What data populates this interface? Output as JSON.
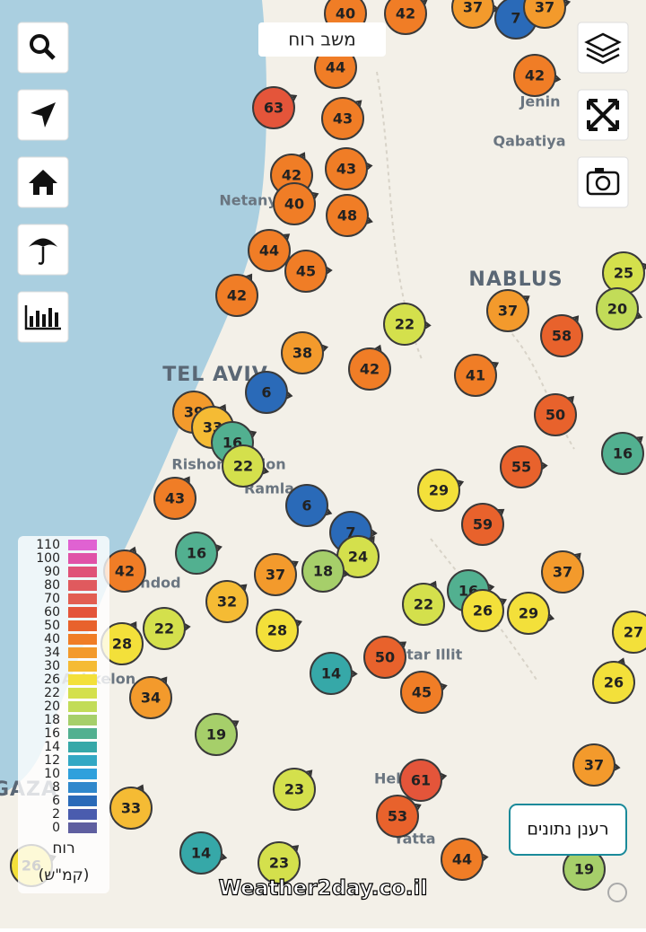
{
  "title": "משב רוח",
  "refresh_button": "רענן נתונים",
  "watermark": "Weather2day.co.il",
  "legend": {
    "title": "רוח",
    "unit": "(קמ\"ש)",
    "steps": [
      {
        "value": 110,
        "color": "#e062d2"
      },
      {
        "value": 100,
        "color": "#e052a8"
      },
      {
        "value": 90,
        "color": "#e05278"
      },
      {
        "value": 80,
        "color": "#e05a5e"
      },
      {
        "value": 70,
        "color": "#e25e52"
      },
      {
        "value": 60,
        "color": "#e4553a"
      },
      {
        "value": 50,
        "color": "#e8622c"
      },
      {
        "value": 40,
        "color": "#f07d26"
      },
      {
        "value": 34,
        "color": "#f39a2c"
      },
      {
        "value": 30,
        "color": "#f5bb34"
      },
      {
        "value": 26,
        "color": "#f3e03a"
      },
      {
        "value": 22,
        "color": "#d4e04c"
      },
      {
        "value": 20,
        "color": "#c2dc58"
      },
      {
        "value": 18,
        "color": "#a6cf6a"
      },
      {
        "value": 16,
        "color": "#52b090"
      },
      {
        "value": 14,
        "color": "#36a8a8"
      },
      {
        "value": 12,
        "color": "#32a8c4"
      },
      {
        "value": 10,
        "color": "#2fa0dc"
      },
      {
        "value": 8,
        "color": "#3088cc"
      },
      {
        "value": 6,
        "color": "#2a6ab8"
      },
      {
        "value": 2,
        "color": "#4a5cae"
      },
      {
        "value": 0,
        "color": "#5f5fa0"
      }
    ]
  },
  "places": [
    "Jenin",
    "Qabatiya",
    "Netanya",
    "NABLUS",
    "TEL AVIV",
    "Rishon LeZion",
    "Ramla",
    "Ashdod",
    "Ashkelon",
    "Beitar Illit",
    "Hebron",
    "Yatta",
    "GAZA"
  ],
  "stations": [
    40,
    42,
    37,
    7,
    37,
    44,
    63,
    42,
    43,
    43,
    42,
    40,
    48,
    44,
    45,
    42,
    25,
    20,
    37,
    22,
    58,
    38,
    42,
    41,
    6,
    50,
    39,
    33,
    16,
    22,
    16,
    55,
    43,
    29,
    6,
    59,
    7,
    24,
    16,
    42,
    37,
    18,
    37,
    16,
    22,
    26,
    29,
    32,
    22,
    28,
    28,
    27,
    50,
    14,
    34,
    45,
    26,
    19,
    37,
    23,
    61,
    33,
    53,
    14,
    23,
    44,
    19,
    26
  ]
}
